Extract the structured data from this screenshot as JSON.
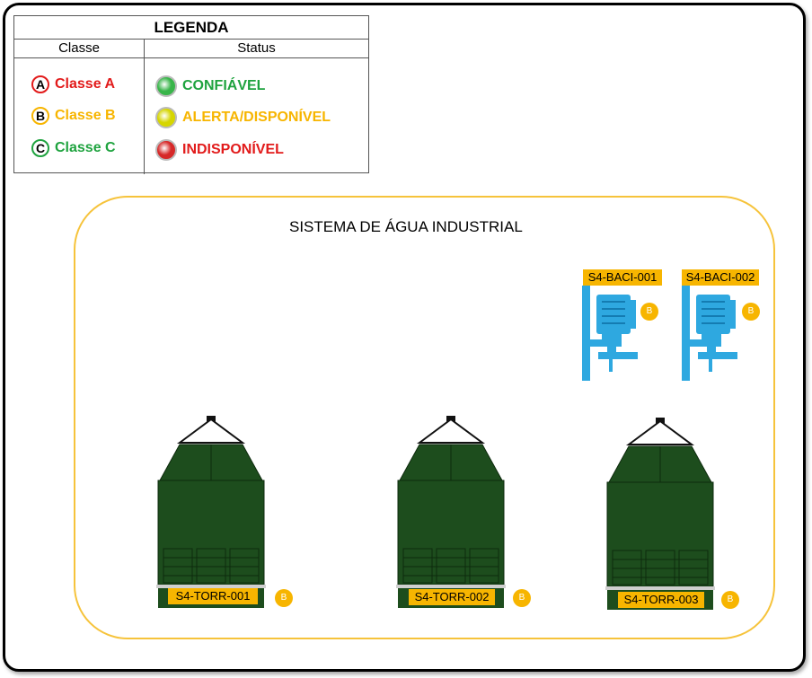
{
  "legend": {
    "title": "LEGENDA",
    "col_classe": "Classe",
    "col_status": "Status",
    "classes": [
      {
        "letter": "A",
        "label": "Classe A",
        "color": "#e21b1b"
      },
      {
        "letter": "B",
        "label": "Classe B",
        "color": "#f7b500"
      },
      {
        "letter": "C",
        "label": "Classe C",
        "color": "#1fa33f"
      }
    ],
    "statuses": [
      {
        "label": "CONFIÁVEL",
        "color": "#1fa33f",
        "led": "#39b54a"
      },
      {
        "label": "ALERTA/DISPONÍVEL",
        "color": "#f7b500",
        "led": "#d6d600"
      },
      {
        "label": "INDISPONÍVEL",
        "color": "#e21b1b",
        "led": "#d62828"
      }
    ]
  },
  "system": {
    "title": "SISTEMA DE ÁGUA INDUSTRIAL",
    "accent": "#f6c33b"
  },
  "pumps": [
    {
      "tag": "S4-BACI-001",
      "class": "B",
      "icon": "pump-motor-icon"
    },
    {
      "tag": "S4-BACI-002",
      "class": "B",
      "icon": "pump-motor-icon"
    }
  ],
  "towers": [
    {
      "tag": "S4-TORR-001",
      "class": "B",
      "icon": "cooling-tower-icon"
    },
    {
      "tag": "S4-TORR-002",
      "class": "B",
      "icon": "cooling-tower-icon"
    },
    {
      "tag": "S4-TORR-003",
      "class": "B",
      "icon": "cooling-tower-icon"
    }
  ]
}
